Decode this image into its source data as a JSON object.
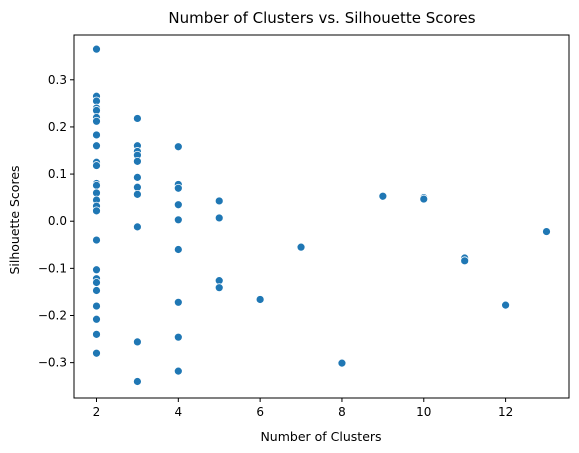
{
  "chart_data": {
    "type": "scatter",
    "title": "Number of Clusters vs. Silhouette Scores",
    "xlabel": "Number of Clusters",
    "ylabel": "Silhouette Scores",
    "xlim": [
      1.45,
      13.55
    ],
    "ylim": [
      -0.375,
      0.395
    ],
    "xticks": [
      2,
      4,
      6,
      8,
      10,
      12
    ],
    "yticks": [
      -0.3,
      -0.2,
      -0.1,
      0.0,
      0.1,
      0.2,
      0.3
    ],
    "xtick_labels": [
      "2",
      "4",
      "6",
      "8",
      "10",
      "12"
    ],
    "ytick_labels": [
      "−0.3",
      "−0.2",
      "−0.1",
      "0.0",
      "0.1",
      "0.2",
      "0.3"
    ],
    "grid": false,
    "marker_color": "#1f77b4",
    "points": [
      {
        "x": 2,
        "y": 0.365
      },
      {
        "x": 2,
        "y": 0.265
      },
      {
        "x": 2,
        "y": 0.255
      },
      {
        "x": 2,
        "y": 0.24
      },
      {
        "x": 2,
        "y": 0.235
      },
      {
        "x": 2,
        "y": 0.22
      },
      {
        "x": 2,
        "y": 0.212
      },
      {
        "x": 2,
        "y": 0.183
      },
      {
        "x": 2,
        "y": 0.16
      },
      {
        "x": 2,
        "y": 0.125
      },
      {
        "x": 2,
        "y": 0.118
      },
      {
        "x": 2,
        "y": 0.08
      },
      {
        "x": 2,
        "y": 0.076
      },
      {
        "x": 2,
        "y": 0.06
      },
      {
        "x": 2,
        "y": 0.045
      },
      {
        "x": 2,
        "y": 0.032
      },
      {
        "x": 2,
        "y": 0.022
      },
      {
        "x": 2,
        "y": -0.04
      },
      {
        "x": 2,
        "y": -0.103
      },
      {
        "x": 2,
        "y": -0.122
      },
      {
        "x": 2,
        "y": -0.13
      },
      {
        "x": 2,
        "y": -0.147
      },
      {
        "x": 2,
        "y": -0.18
      },
      {
        "x": 2,
        "y": -0.208
      },
      {
        "x": 2,
        "y": -0.24
      },
      {
        "x": 2,
        "y": -0.28
      },
      {
        "x": 3,
        "y": 0.218
      },
      {
        "x": 3,
        "y": 0.16
      },
      {
        "x": 3,
        "y": 0.148
      },
      {
        "x": 3,
        "y": 0.14
      },
      {
        "x": 3,
        "y": 0.127
      },
      {
        "x": 3,
        "y": 0.093
      },
      {
        "x": 3,
        "y": 0.072
      },
      {
        "x": 3,
        "y": 0.057
      },
      {
        "x": 3,
        "y": -0.012
      },
      {
        "x": 3,
        "y": -0.256
      },
      {
        "x": 3,
        "y": -0.34
      },
      {
        "x": 4,
        "y": 0.158
      },
      {
        "x": 4,
        "y": 0.078
      },
      {
        "x": 4,
        "y": 0.07
      },
      {
        "x": 4,
        "y": 0.035
      },
      {
        "x": 4,
        "y": 0.003
      },
      {
        "x": 4,
        "y": -0.06
      },
      {
        "x": 4,
        "y": -0.172
      },
      {
        "x": 4,
        "y": -0.246
      },
      {
        "x": 4,
        "y": -0.318
      },
      {
        "x": 5,
        "y": 0.043
      },
      {
        "x": 5,
        "y": 0.007
      },
      {
        "x": 5,
        "y": -0.126
      },
      {
        "x": 5,
        "y": -0.141
      },
      {
        "x": 6,
        "y": -0.166
      },
      {
        "x": 7,
        "y": -0.055
      },
      {
        "x": 8,
        "y": -0.301
      },
      {
        "x": 9,
        "y": 0.053
      },
      {
        "x": 10,
        "y": 0.05
      },
      {
        "x": 10,
        "y": 0.047
      },
      {
        "x": 11,
        "y": -0.078
      },
      {
        "x": 11,
        "y": -0.084
      },
      {
        "x": 12,
        "y": -0.178
      },
      {
        "x": 13,
        "y": -0.022
      }
    ]
  }
}
